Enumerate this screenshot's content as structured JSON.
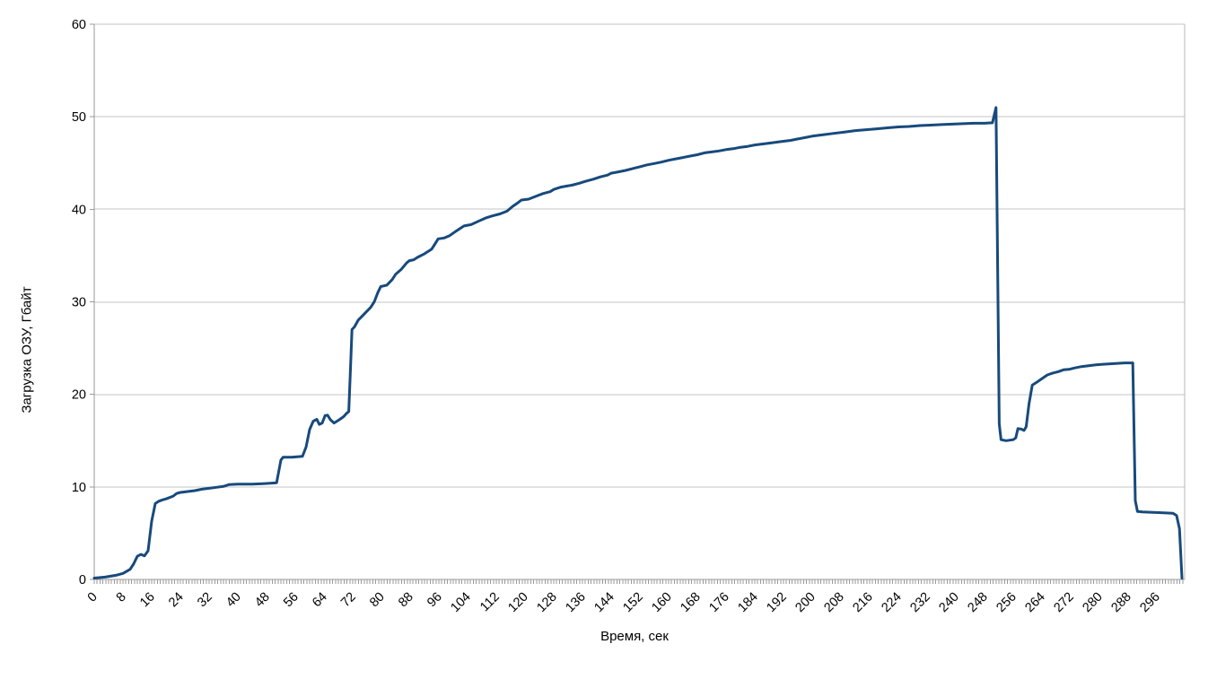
{
  "chart_data": {
    "type": "line",
    "title": "",
    "xlabel": "Время, сек",
    "ylabel": "Загрузка ОЗУ, Гбайт",
    "xlim": [
      0,
      303.75
    ],
    "ylim": [
      0,
      60
    ],
    "x_major_tick_interval": 8,
    "x_minor_tick_interval": 0.8,
    "x_tick_labels": [
      0,
      8,
      16,
      24,
      32,
      40,
      48,
      56,
      64,
      72,
      80,
      88,
      96,
      104,
      112,
      120,
      128,
      136,
      144,
      152,
      160,
      168,
      176,
      184,
      192,
      200,
      208,
      216,
      224,
      232,
      240,
      248,
      256,
      264,
      272,
      280,
      288,
      296
    ],
    "y_tick_labels": [
      0,
      10,
      20,
      30,
      40,
      50,
      60
    ],
    "grid": "horizontal",
    "legend": "none",
    "line_color": "#174A7C",
    "grid_color": "#C6C6C6",
    "border_color": "#B9B9B9",
    "axis_color": "#9A9A9A",
    "text_color": "#000000",
    "series": [
      {
        "name": "Загрузка ОЗУ",
        "points": [
          [
            0,
            0.15
          ],
          [
            3,
            0.25
          ],
          [
            6,
            0.45
          ],
          [
            8,
            0.65
          ],
          [
            10,
            1.1
          ],
          [
            11,
            1.7
          ],
          [
            12,
            2.5
          ],
          [
            13,
            2.7
          ],
          [
            14,
            2.55
          ],
          [
            15,
            3.1
          ],
          [
            16,
            6.3
          ],
          [
            17,
            8.2
          ],
          [
            18,
            8.45
          ],
          [
            19,
            8.6
          ],
          [
            20,
            8.7
          ],
          [
            22,
            9.0
          ],
          [
            23,
            9.3
          ],
          [
            24,
            9.4
          ],
          [
            26,
            9.5
          ],
          [
            28,
            9.6
          ],
          [
            30,
            9.75
          ],
          [
            32,
            9.85
          ],
          [
            34,
            9.95
          ],
          [
            36,
            10.05
          ],
          [
            37.5,
            10.25
          ],
          [
            40,
            10.3
          ],
          [
            44,
            10.3
          ],
          [
            47,
            10.35
          ],
          [
            49,
            10.4
          ],
          [
            50.8,
            10.45
          ],
          [
            52,
            12.9
          ],
          [
            52.6,
            13.2
          ],
          [
            55,
            13.2
          ],
          [
            58,
            13.3
          ],
          [
            59,
            14.3
          ],
          [
            60,
            16.2
          ],
          [
            61,
            17.1
          ],
          [
            62,
            17.3
          ],
          [
            62.7,
            16.75
          ],
          [
            63.5,
            16.9
          ],
          [
            64.3,
            17.7
          ],
          [
            65,
            17.75
          ],
          [
            65.8,
            17.25
          ],
          [
            66.8,
            16.9
          ],
          [
            67.8,
            17.15
          ],
          [
            68.6,
            17.35
          ],
          [
            69.5,
            17.6
          ],
          [
            70.3,
            17.95
          ],
          [
            70.9,
            18.15
          ],
          [
            71.3,
            22
          ],
          [
            71.8,
            27
          ],
          [
            72.5,
            27.3
          ],
          [
            73.5,
            28
          ],
          [
            75,
            28.6
          ],
          [
            76,
            29
          ],
          [
            77,
            29.4
          ],
          [
            78,
            30
          ],
          [
            79,
            31
          ],
          [
            79.8,
            31.65
          ],
          [
            81.5,
            31.8
          ],
          [
            83,
            32.4
          ],
          [
            84,
            33
          ],
          [
            85.5,
            33.5
          ],
          [
            87,
            34.2
          ],
          [
            87.8,
            34.45
          ],
          [
            89,
            34.55
          ],
          [
            90,
            34.8
          ],
          [
            92,
            35.2
          ],
          [
            94,
            35.7
          ],
          [
            95,
            36.3
          ],
          [
            95.8,
            36.8
          ],
          [
            97.5,
            36.9
          ],
          [
            99,
            37.15
          ],
          [
            101,
            37.7
          ],
          [
            103,
            38.2
          ],
          [
            105,
            38.35
          ],
          [
            107,
            38.7
          ],
          [
            109,
            39.05
          ],
          [
            111,
            39.3
          ],
          [
            113,
            39.5
          ],
          [
            115,
            39.8
          ],
          [
            116.5,
            40.3
          ],
          [
            118,
            40.7
          ],
          [
            119,
            41
          ],
          [
            121,
            41.1
          ],
          [
            123,
            41.4
          ],
          [
            125,
            41.7
          ],
          [
            127,
            41.9
          ],
          [
            128,
            42.15
          ],
          [
            130,
            42.4
          ],
          [
            131.5,
            42.5
          ],
          [
            133,
            42.6
          ],
          [
            135,
            42.8
          ],
          [
            137,
            43.05
          ],
          [
            139,
            43.25
          ],
          [
            141,
            43.5
          ],
          [
            143,
            43.7
          ],
          [
            144,
            43.9
          ],
          [
            146,
            44.05
          ],
          [
            148,
            44.2
          ],
          [
            150,
            44.4
          ],
          [
            152,
            44.6
          ],
          [
            154,
            44.8
          ],
          [
            156,
            44.95
          ],
          [
            158,
            45.1
          ],
          [
            160,
            45.3
          ],
          [
            162,
            45.45
          ],
          [
            164,
            45.6
          ],
          [
            166,
            45.75
          ],
          [
            168,
            45.9
          ],
          [
            170,
            46.1
          ],
          [
            172,
            46.2
          ],
          [
            174,
            46.3
          ],
          [
            176,
            46.45
          ],
          [
            178,
            46.55
          ],
          [
            180,
            46.7
          ],
          [
            182,
            46.8
          ],
          [
            184,
            46.95
          ],
          [
            186,
            47.05
          ],
          [
            188,
            47.15
          ],
          [
            191,
            47.3
          ],
          [
            194,
            47.45
          ],
          [
            196,
            47.6
          ],
          [
            198,
            47.75
          ],
          [
            200,
            47.9
          ],
          [
            203,
            48.05
          ],
          [
            206,
            48.2
          ],
          [
            209,
            48.35
          ],
          [
            212,
            48.5
          ],
          [
            215,
            48.6
          ],
          [
            218,
            48.7
          ],
          [
            221,
            48.8
          ],
          [
            224,
            48.9
          ],
          [
            227,
            48.95
          ],
          [
            230,
            49.05
          ],
          [
            233,
            49.1
          ],
          [
            236,
            49.15
          ],
          [
            239,
            49.2
          ],
          [
            242,
            49.25
          ],
          [
            245,
            49.3
          ],
          [
            248,
            49.3
          ],
          [
            250.2,
            49.35
          ],
          [
            251.2,
            51
          ],
          [
            252.1,
            16.8
          ],
          [
            252.6,
            15.1
          ],
          [
            254,
            15
          ],
          [
            256,
            15.1
          ],
          [
            256.7,
            15.3
          ],
          [
            257.3,
            16.3
          ],
          [
            258.2,
            16.25
          ],
          [
            259,
            16.1
          ],
          [
            259.6,
            16.5
          ],
          [
            260.4,
            19
          ],
          [
            261.3,
            21
          ],
          [
            262.5,
            21.3
          ],
          [
            264,
            21.7
          ],
          [
            265.5,
            22.1
          ],
          [
            267,
            22.3
          ],
          [
            268.5,
            22.45
          ],
          [
            270,
            22.65
          ],
          [
            271.5,
            22.7
          ],
          [
            273,
            22.85
          ],
          [
            275,
            23
          ],
          [
            277,
            23.1
          ],
          [
            279,
            23.2
          ],
          [
            281,
            23.25
          ],
          [
            283,
            23.3
          ],
          [
            285,
            23.35
          ],
          [
            287,
            23.4
          ],
          [
            289.3,
            23.4
          ],
          [
            290,
            8.5
          ],
          [
            290.6,
            7.35
          ],
          [
            292,
            7.3
          ],
          [
            295,
            7.25
          ],
          [
            298,
            7.2
          ],
          [
            300.5,
            7.15
          ],
          [
            301.5,
            6.9
          ],
          [
            302.3,
            5.5
          ],
          [
            303,
            0.15
          ]
        ]
      }
    ]
  }
}
